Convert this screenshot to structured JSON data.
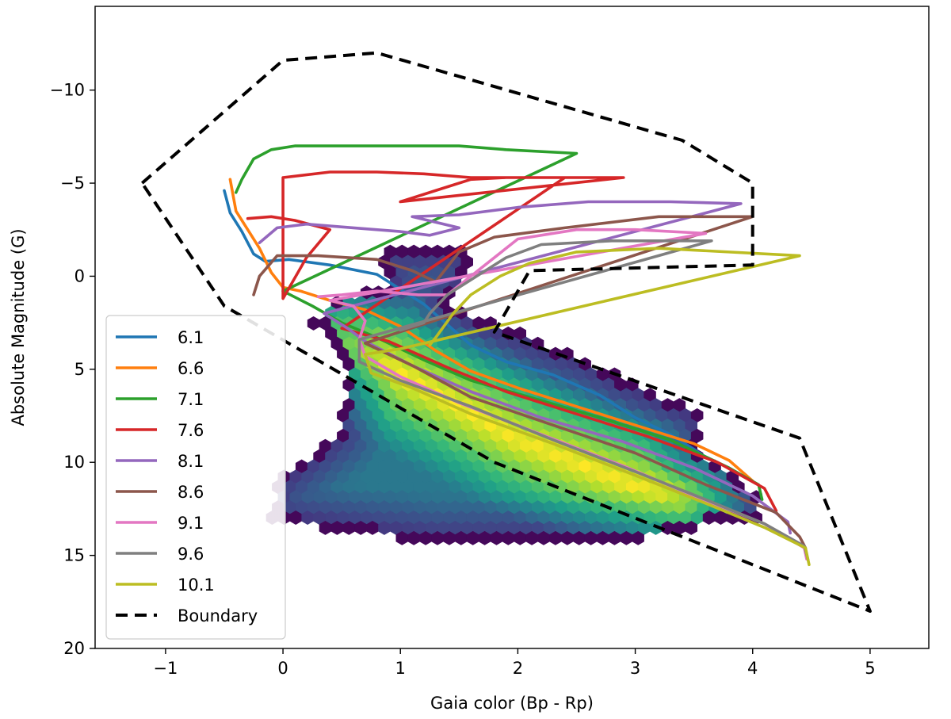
{
  "chart_data": {
    "type": "line",
    "title": "",
    "xlabel": "Gaia color (Bp - Rp)",
    "ylabel": "Absolute Magnitude (G)",
    "xlim": [
      -1.6,
      5.5
    ],
    "ylim": [
      20,
      -14.5
    ],
    "y_inverted": true,
    "xticks": [
      -1,
      0,
      1,
      2,
      3,
      4,
      5
    ],
    "xtick_labels": [
      "−1",
      "0",
      "1",
      "2",
      "3",
      "4",
      "5"
    ],
    "yticks": [
      -10,
      -5,
      0,
      5,
      10,
      15,
      20
    ],
    "ytick_labels": [
      "−10",
      "−5",
      "0",
      "5",
      "10",
      "15",
      "20"
    ],
    "legend_position": "lower-left",
    "density_histogram": {
      "type": "hexbin",
      "colormap": "viridis",
      "region": [
        [
          0.95,
          -2
        ],
        [
          1.0,
          -1.4
        ],
        [
          1.5,
          -1.4
        ],
        [
          1.6,
          -1.0
        ],
        [
          1.55,
          0.5
        ],
        [
          1.4,
          1.5
        ],
        [
          1.8,
          2.5
        ],
        [
          2.6,
          4.5
        ],
        [
          2.9,
          5.5
        ],
        [
          3.6,
          7.5
        ],
        [
          3.5,
          9.2
        ],
        [
          3.9,
          11
        ],
        [
          4.05,
          12
        ],
        [
          4.1,
          13
        ],
        [
          3.6,
          13.4
        ],
        [
          3.2,
          14
        ],
        [
          2.5,
          14.3
        ],
        [
          1.3,
          14.3
        ],
        [
          0.5,
          13.7
        ],
        [
          -0.1,
          13.1
        ],
        [
          -0.1,
          12.2
        ],
        [
          -0.05,
          11
        ],
        [
          0.25,
          9.5
        ],
        [
          0.45,
          8.5
        ],
        [
          0.55,
          6
        ],
        [
          0.45,
          3.5
        ],
        [
          0.25,
          2.5
        ],
        [
          0.4,
          1.3
        ],
        [
          0.55,
          1.0
        ],
        [
          0.9,
          0.5
        ],
        [
          0.85,
          -1
        ]
      ],
      "ridge": [
        [
          0.45,
          3.2
        ],
        [
          1.2,
          6.0
        ],
        [
          2.0,
          8.8
        ],
        [
          2.8,
          10.8
        ],
        [
          3.4,
          12.3
        ]
      ]
    },
    "series": [
      {
        "name": "6.1",
        "color": "#1f77b4",
        "points": [
          [
            -0.5,
            -4.6
          ],
          [
            -0.45,
            -3.4
          ],
          [
            -0.35,
            -2.4
          ],
          [
            -0.25,
            -1.2
          ],
          [
            -0.15,
            -0.8
          ],
          [
            0.05,
            -0.9
          ],
          [
            0.4,
            -0.6
          ],
          [
            0.8,
            -0.1
          ],
          [
            1.0,
            0.7
          ],
          [
            1.2,
            1.5
          ],
          [
            1.4,
            2.6
          ],
          [
            1.6,
            3.7
          ],
          [
            1.9,
            4.6
          ],
          [
            2.3,
            5.3
          ],
          [
            2.7,
            6.4
          ],
          [
            3.0,
            7.6
          ],
          [
            3.3,
            8.5
          ],
          [
            3.5,
            9.3
          ],
          [
            3.62,
            9.8
          ]
        ]
      },
      {
        "name": "6.6",
        "color": "#ff7f0e",
        "points": [
          [
            -0.45,
            -5.2
          ],
          [
            -0.4,
            -3.5
          ],
          [
            -0.3,
            -2.5
          ],
          [
            -0.2,
            -1.5
          ],
          [
            -0.1,
            -0.2
          ],
          [
            0.0,
            0.6
          ],
          [
            0.15,
            0.8
          ],
          [
            0.4,
            1.3
          ],
          [
            0.7,
            1.8
          ],
          [
            1.0,
            2.7
          ],
          [
            1.3,
            4.0
          ],
          [
            1.6,
            5.1
          ],
          [
            2.0,
            6.0
          ],
          [
            2.5,
            7.0
          ],
          [
            3.0,
            8.0
          ],
          [
            3.5,
            9.0
          ],
          [
            3.8,
            9.9
          ],
          [
            4.0,
            11.0
          ]
        ]
      },
      {
        "name": "7.1",
        "color": "#2ca02c",
        "points": [
          [
            -0.4,
            -4.5
          ],
          [
            -0.35,
            -5.2
          ],
          [
            -0.25,
            -6.3
          ],
          [
            -0.1,
            -6.8
          ],
          [
            0.1,
            -7.0
          ],
          [
            0.4,
            -7.0
          ],
          [
            0.9,
            -7.0
          ],
          [
            1.5,
            -7.0
          ],
          [
            1.9,
            -6.8
          ],
          [
            2.5,
            -6.6
          ],
          [
            0.0,
            0.8
          ],
          [
            0.25,
            1.6
          ],
          [
            0.5,
            2.5
          ],
          [
            0.8,
            3.3
          ],
          [
            1.2,
            4.5
          ],
          [
            1.6,
            5.6
          ],
          [
            2.1,
            6.5
          ],
          [
            2.7,
            7.6
          ],
          [
            3.3,
            8.8
          ],
          [
            3.8,
            10.3
          ],
          [
            4.05,
            11.2
          ],
          [
            4.08,
            12.0
          ]
        ]
      },
      {
        "name": "7.6",
        "color": "#d62728",
        "points": [
          [
            -0.3,
            -3.1
          ],
          [
            -0.1,
            -3.2
          ],
          [
            0.1,
            -3.0
          ],
          [
            0.4,
            -2.5
          ],
          [
            0.2,
            -1.0
          ],
          [
            0.0,
            1.2
          ],
          [
            0.0,
            -5.3
          ],
          [
            0.4,
            -5.6
          ],
          [
            0.8,
            -5.6
          ],
          [
            1.2,
            -5.5
          ],
          [
            1.6,
            -5.3
          ],
          [
            2.1,
            -5.3
          ],
          [
            2.9,
            -5.3
          ],
          [
            1.0,
            -4.0
          ],
          [
            1.3,
            -4.6
          ],
          [
            1.6,
            -5.2
          ],
          [
            1.9,
            -5.3
          ],
          [
            2.4,
            -5.3
          ],
          [
            0.5,
            2.8
          ],
          [
            0.9,
            3.5
          ],
          [
            1.4,
            4.9
          ],
          [
            1.9,
            6.2
          ],
          [
            2.5,
            7.4
          ],
          [
            3.1,
            8.6
          ],
          [
            3.7,
            10.0
          ],
          [
            4.1,
            11.4
          ],
          [
            4.2,
            12.6
          ]
        ]
      },
      {
        "name": "8.1",
        "color": "#9467bd",
        "points": [
          [
            -0.2,
            -1.8
          ],
          [
            -0.05,
            -2.6
          ],
          [
            0.2,
            -2.8
          ],
          [
            0.6,
            -2.6
          ],
          [
            1.0,
            -2.4
          ],
          [
            1.25,
            -2.2
          ],
          [
            1.5,
            -2.6
          ],
          [
            1.1,
            -3.2
          ],
          [
            1.5,
            -3.3
          ],
          [
            2.0,
            -3.7
          ],
          [
            2.6,
            -4.0
          ],
          [
            3.3,
            -4.0
          ],
          [
            3.9,
            -3.9
          ],
          [
            0.35,
            2.0
          ],
          [
            0.55,
            2.8
          ],
          [
            0.7,
            3.5
          ],
          [
            1.1,
            4.8
          ],
          [
            1.6,
            6.2
          ],
          [
            2.2,
            7.6
          ],
          [
            2.9,
            8.9
          ],
          [
            3.5,
            10.3
          ],
          [
            4.0,
            11.8
          ],
          [
            4.3,
            13.2
          ],
          [
            4.32,
            13.8
          ]
        ]
      },
      {
        "name": "8.6",
        "color": "#8c564b",
        "points": [
          [
            -0.25,
            1.0
          ],
          [
            -0.2,
            0.0
          ],
          [
            -0.05,
            -1.1
          ],
          [
            0.3,
            -1.1
          ],
          [
            0.8,
            -0.9
          ],
          [
            1.1,
            -0.3
          ],
          [
            1.3,
            0.3
          ],
          [
            1.5,
            -1.3
          ],
          [
            1.8,
            -2.1
          ],
          [
            2.4,
            -2.6
          ],
          [
            3.2,
            -3.2
          ],
          [
            4.0,
            -3.2
          ],
          [
            0.7,
            3.6
          ],
          [
            1.1,
            4.8
          ],
          [
            1.6,
            6.5
          ],
          [
            2.3,
            8.0
          ],
          [
            3.0,
            9.5
          ],
          [
            3.6,
            11.2
          ],
          [
            4.2,
            12.7
          ],
          [
            4.4,
            14.0
          ],
          [
            4.45,
            14.6
          ]
        ]
      },
      {
        "name": "9.1",
        "color": "#e377c2",
        "points": [
          [
            0.3,
            1.1
          ],
          [
            0.5,
            1.0
          ],
          [
            0.8,
            0.8
          ],
          [
            1.15,
            1.0
          ],
          [
            1.4,
            1.0
          ],
          [
            1.7,
            -0.5
          ],
          [
            2.0,
            -2.0
          ],
          [
            2.5,
            -2.5
          ],
          [
            3.0,
            -2.5
          ],
          [
            3.6,
            -2.3
          ],
          [
            0.4,
            1.3
          ],
          [
            0.6,
            1.6
          ],
          [
            0.7,
            2.4
          ],
          [
            0.65,
            3.4
          ],
          [
            0.7,
            4.3
          ],
          [
            1.0,
            5.4
          ],
          [
            1.5,
            6.8
          ],
          [
            2.2,
            8.5
          ],
          [
            2.9,
            10.2
          ],
          [
            3.5,
            11.8
          ],
          [
            4.1,
            13.3
          ],
          [
            4.44,
            14.6
          ],
          [
            4.46,
            15.2
          ]
        ]
      },
      {
        "name": "9.6",
        "color": "#7f7f7f",
        "points": [
          [
            1.0,
            2.9
          ],
          [
            1.2,
            2.5
          ],
          [
            1.25,
            2.0
          ],
          [
            1.4,
            1.0
          ],
          [
            1.65,
            0.0
          ],
          [
            1.9,
            -1.0
          ],
          [
            2.2,
            -1.7
          ],
          [
            2.8,
            -1.9
          ],
          [
            3.65,
            -1.9
          ],
          [
            0.65,
            3.4
          ],
          [
            0.65,
            4.6
          ],
          [
            1.0,
            5.6
          ],
          [
            1.6,
            7.0
          ],
          [
            2.3,
            8.8
          ],
          [
            3.0,
            10.5
          ],
          [
            3.6,
            12.0
          ],
          [
            4.1,
            13.3
          ],
          [
            4.44,
            14.5
          ],
          [
            4.47,
            15.2
          ]
        ]
      },
      {
        "name": "10.1",
        "color": "#bcbd22",
        "points": [
          [
            1.25,
            3.7
          ],
          [
            1.3,
            3.3
          ],
          [
            1.45,
            2.0
          ],
          [
            1.6,
            1.0
          ],
          [
            1.85,
            0.0
          ],
          [
            2.1,
            -0.7
          ],
          [
            2.5,
            -1.3
          ],
          [
            3.2,
            -1.5
          ],
          [
            4.4,
            -1.1
          ],
          [
            1.0,
            3.9
          ],
          [
            0.7,
            4.2
          ],
          [
            0.75,
            5.2
          ],
          [
            1.1,
            6.0
          ],
          [
            1.6,
            7.4
          ],
          [
            2.3,
            9.0
          ],
          [
            3.0,
            10.7
          ],
          [
            3.6,
            12.2
          ],
          [
            4.1,
            13.5
          ],
          [
            4.45,
            14.6
          ],
          [
            4.48,
            15.5
          ]
        ]
      },
      {
        "name": "Boundary",
        "color": "#000000",
        "dashed": true,
        "points": [
          [
            -1.2,
            -5
          ],
          [
            0.0,
            -11.6
          ],
          [
            0.8,
            -12.0
          ],
          [
            3.4,
            -7.3
          ],
          [
            4.0,
            -5.0
          ],
          [
            4.0,
            -0.6
          ],
          [
            2.1,
            -0.3
          ],
          [
            1.8,
            3.0
          ],
          [
            4.4,
            8.7
          ],
          [
            5.0,
            18.0
          ],
          [
            1.8,
            10.0
          ],
          [
            -0.5,
            1.6
          ],
          [
            -1.2,
            -5
          ]
        ]
      }
    ]
  }
}
